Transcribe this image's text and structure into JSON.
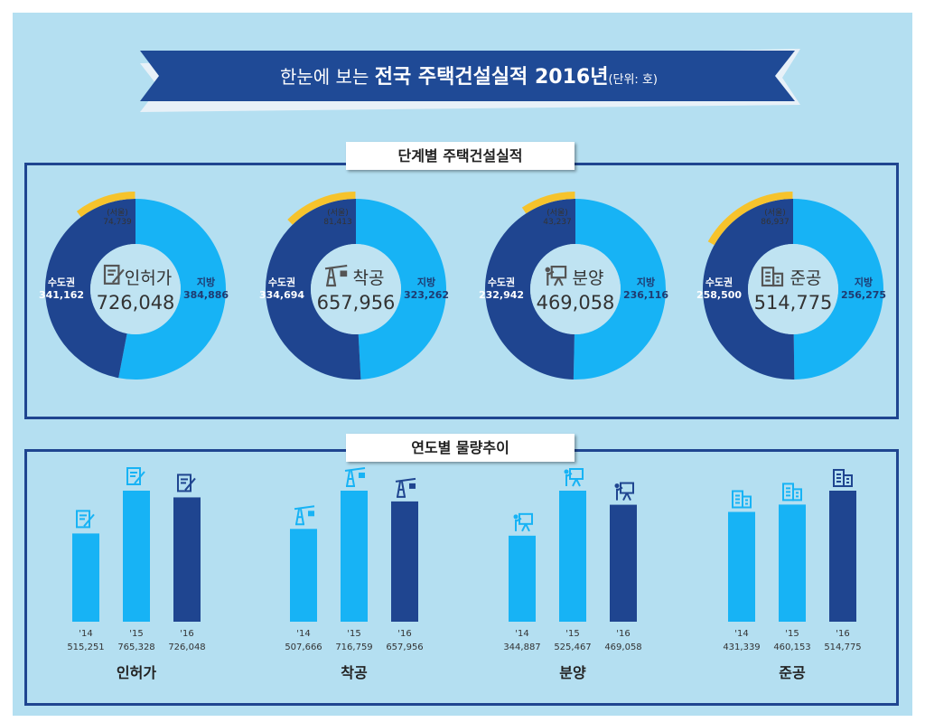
{
  "title": {
    "prefix": "한눈에 보는 ",
    "main": "전국 주택건설실적 2016년",
    "unit": "(단위: 호)"
  },
  "colors": {
    "background": "#b4dff1",
    "dark_blue": "#1f4590",
    "light_blue": "#17b3f5",
    "seoul_yellow": "#f6c32c",
    "banner": "#1f4a96"
  },
  "sections": {
    "stage": "단계별 주택건설실적",
    "trend": "연도별 물량추이"
  },
  "chart_data": [
    {
      "type": "pie",
      "title": "단계별 주택건설실적",
      "donuts": [
        {
          "name": "인허가",
          "icon": "document-pen-icon",
          "total": "726,048",
          "total_value": 726048,
          "regional_label": "지방",
          "regional": "384,886",
          "regional_value": 384886,
          "capital_label": "수도권",
          "capital": "341,162",
          "capital_value": 341162,
          "seoul_label": "(서울)",
          "seoul": "74,739",
          "seoul_value": 74739
        },
        {
          "name": "착공",
          "icon": "crane-icon",
          "total": "657,956",
          "total_value": 657956,
          "regional_label": "지방",
          "regional": "323,262",
          "regional_value": 323262,
          "capital_label": "수도권",
          "capital": "334,694",
          "capital_value": 334694,
          "seoul_label": "(서울)",
          "seoul": "81,413",
          "seoul_value": 81413
        },
        {
          "name": "분양",
          "icon": "presentation-board-icon",
          "total": "469,058",
          "total_value": 469058,
          "regional_label": "지방",
          "regional": "236,116",
          "regional_value": 236116,
          "capital_label": "수도권",
          "capital": "232,942",
          "capital_value": 232942,
          "seoul_label": "(서울)",
          "seoul": "43,237",
          "seoul_value": 43237
        },
        {
          "name": "준공",
          "icon": "building-icon",
          "total": "514,775",
          "total_value": 514775,
          "regional_label": "지방",
          "regional": "256,275",
          "regional_value": 256275,
          "capital_label": "수도권",
          "capital": "258,500",
          "capital_value": 258500,
          "seoul_label": "(서울)",
          "seoul": "86,937",
          "seoul_value": 86937
        }
      ]
    },
    {
      "type": "bar",
      "title": "연도별 물량추이",
      "categories": [
        "'14",
        "'15",
        "'16"
      ],
      "groups": [
        {
          "name": "인허가",
          "icon": "document-pen-icon",
          "values": [
            515251,
            765328,
            726048
          ],
          "labels": [
            "515,251",
            "765,328",
            "726,048"
          ]
        },
        {
          "name": "착공",
          "icon": "crane-icon",
          "values": [
            507666,
            716759,
            657956
          ],
          "labels": [
            "507,666",
            "716,759",
            "657,956"
          ]
        },
        {
          "name": "분양",
          "icon": "presentation-board-icon",
          "values": [
            344887,
            525467,
            469058
          ],
          "labels": [
            "344,887",
            "525,467",
            "469,058"
          ]
        },
        {
          "name": "준공",
          "icon": "building-icon",
          "values": [
            431339,
            460153,
            514775
          ],
          "labels": [
            "431,339",
            "460,153",
            "514,775"
          ]
        }
      ]
    }
  ]
}
